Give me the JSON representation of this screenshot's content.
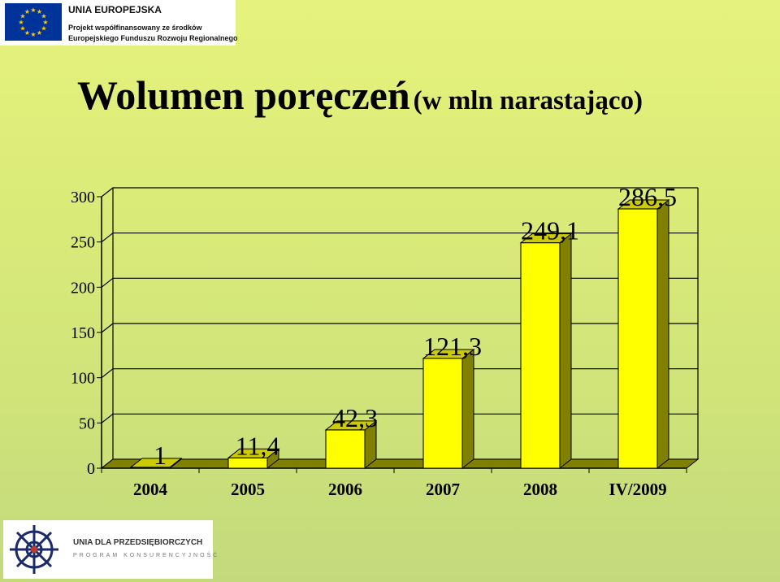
{
  "header_logo": {
    "title": "UNIA EUROPEJSKA",
    "line1": "Projekt    współfinansowany    ze    środków",
    "line2": "Europejskiego Funduszu Rozwoju Regionalnego",
    "flag_icon": "eu-flag-icon"
  },
  "slide_title": {
    "main": "Wolumen poręczeń",
    "sub": "(w mln narastająco)"
  },
  "colors": {
    "bar_front": "#ffff00",
    "bar_side": "#808000",
    "bar_top": "#cccc00",
    "floor": "#808000"
  },
  "chart_data": {
    "type": "bar",
    "categories": [
      "2004",
      "2005",
      "2006",
      "2007",
      "2008",
      "IV/2009"
    ],
    "values": [
      1,
      11.4,
      42.3,
      121.3,
      249.1,
      286.5
    ],
    "data_labels": [
      "1",
      "11,4",
      "42,3",
      "121,3",
      "249,1",
      "286,5"
    ],
    "y_ticks": [
      0,
      50,
      100,
      150,
      200,
      250,
      300
    ],
    "ylim": [
      0,
      300
    ],
    "grid": true,
    "legend": "none",
    "style": "3d"
  },
  "footer_logo": {
    "name": "UNIA DLA PRZEDSIĘBIORCZYCH",
    "program": "PROGRAM KONSURENCYJNOŚĆ",
    "icon": "ship-wheel-icon"
  }
}
